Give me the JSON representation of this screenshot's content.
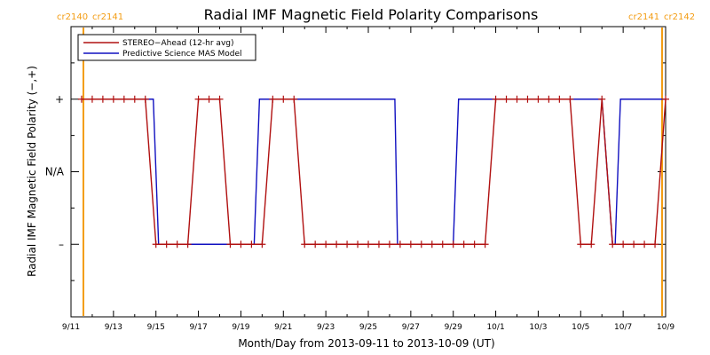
{
  "chart_data": {
    "type": "line",
    "title": "Radial IMF Magnetic Field Polarity Comparisons",
    "xlabel": "Month/Day from 2013-09-11 to 2013-10-09 (UT)",
    "ylabel": "Radial IMF Magnetic Field Polarity (−,+)",
    "x_range": [
      "2013-09-11",
      "2013-10-09"
    ],
    "x_ticks": [
      {
        "date": "2013-09-11",
        "label": "9/11"
      },
      {
        "date": "2013-09-13",
        "label": "9/13"
      },
      {
        "date": "2013-09-15",
        "label": "9/15"
      },
      {
        "date": "2013-09-17",
        "label": "9/17"
      },
      {
        "date": "2013-09-19",
        "label": "9/19"
      },
      {
        "date": "2013-09-21",
        "label": "9/21"
      },
      {
        "date": "2013-09-23",
        "label": "9/23"
      },
      {
        "date": "2013-09-25",
        "label": "9/25"
      },
      {
        "date": "2013-09-27",
        "label": "9/27"
      },
      {
        "date": "2013-09-29",
        "label": "9/29"
      },
      {
        "date": "2013-10-01",
        "label": "10/1"
      },
      {
        "date": "2013-10-03",
        "label": "10/3"
      },
      {
        "date": "2013-10-05",
        "label": "10/5"
      },
      {
        "date": "2013-10-07",
        "label": "10/7"
      },
      {
        "date": "2013-10-09",
        "label": "10/9"
      }
    ],
    "y_ticks": [
      {
        "value": 1,
        "label": "+"
      },
      {
        "value": 0,
        "label": "N/A"
      },
      {
        "value": -1,
        "label": "–"
      }
    ],
    "y_range": [
      -2,
      2
    ],
    "grid": false,
    "legend": "top-left",
    "carrington_markers": [
      {
        "date": "2013-09-11T14:00",
        "left_label": "cr2140",
        "right_label": "cr2141",
        "color": "#f39c12",
        "position": "left"
      },
      {
        "date": "2013-10-08T20:00",
        "left_label": "cr2141",
        "right_label": "cr2142",
        "color": "#f39c12",
        "position": "right"
      }
    ],
    "series": [
      {
        "name": "STEREO−Ahead (12-hr avg)",
        "color": "#b01010",
        "marker": "plus",
        "points": [
          [
            "2013-09-11T12:00",
            1
          ],
          [
            "2013-09-12T00:00",
            1
          ],
          [
            "2013-09-12T12:00",
            1
          ],
          [
            "2013-09-13T00:00",
            1
          ],
          [
            "2013-09-13T12:00",
            1
          ],
          [
            "2013-09-14T00:00",
            1
          ],
          [
            "2013-09-14T12:00",
            1
          ],
          [
            "2013-09-15T00:00",
            -1
          ],
          [
            "2013-09-15T12:00",
            -1
          ],
          [
            "2013-09-16T00:00",
            -1
          ],
          [
            "2013-09-16T12:00",
            -1
          ],
          [
            "2013-09-17T00:00",
            1
          ],
          [
            "2013-09-17T12:00",
            1
          ],
          [
            "2013-09-18T00:00",
            1
          ],
          [
            "2013-09-18T12:00",
            -1
          ],
          [
            "2013-09-19T00:00",
            -1
          ],
          [
            "2013-09-19T12:00",
            -1
          ],
          [
            "2013-09-20T00:00",
            -1
          ],
          [
            "2013-09-20T12:00",
            1
          ],
          [
            "2013-09-21T00:00",
            1
          ],
          [
            "2013-09-21T12:00",
            1
          ],
          [
            "2013-09-22T00:00",
            -1
          ],
          [
            "2013-09-22T12:00",
            -1
          ],
          [
            "2013-09-23T00:00",
            -1
          ],
          [
            "2013-09-23T12:00",
            -1
          ],
          [
            "2013-09-24T00:00",
            -1
          ],
          [
            "2013-09-24T12:00",
            -1
          ],
          [
            "2013-09-25T00:00",
            -1
          ],
          [
            "2013-09-25T12:00",
            -1
          ],
          [
            "2013-09-26T00:00",
            -1
          ],
          [
            "2013-09-26T12:00",
            -1
          ],
          [
            "2013-09-27T00:00",
            -1
          ],
          [
            "2013-09-27T12:00",
            -1
          ],
          [
            "2013-09-28T00:00",
            -1
          ],
          [
            "2013-09-28T12:00",
            -1
          ],
          [
            "2013-09-29T00:00",
            -1
          ],
          [
            "2013-09-29T12:00",
            -1
          ],
          [
            "2013-09-30T00:00",
            -1
          ],
          [
            "2013-09-30T12:00",
            -1
          ],
          [
            "2013-10-01T00:00",
            1
          ],
          [
            "2013-10-01T12:00",
            1
          ],
          [
            "2013-10-02T00:00",
            1
          ],
          [
            "2013-10-02T12:00",
            1
          ],
          [
            "2013-10-03T00:00",
            1
          ],
          [
            "2013-10-03T12:00",
            1
          ],
          [
            "2013-10-04T00:00",
            1
          ],
          [
            "2013-10-04T12:00",
            1
          ],
          [
            "2013-10-05T00:00",
            -1
          ],
          [
            "2013-10-05T12:00",
            -1
          ],
          [
            "2013-10-06T00:00",
            1
          ],
          [
            "2013-10-06T12:00",
            -1
          ],
          [
            "2013-10-07T00:00",
            -1
          ],
          [
            "2013-10-07T12:00",
            -1
          ],
          [
            "2013-10-08T00:00",
            -1
          ],
          [
            "2013-10-08T12:00",
            -1
          ],
          [
            "2013-10-09T00:00",
            1
          ]
        ]
      },
      {
        "name": "Predictive Science MAS Model",
        "color": "#1010c0",
        "marker": "none",
        "points": [
          [
            "2013-09-11T12:00",
            1
          ],
          [
            "2013-09-14T21:00",
            1
          ],
          [
            "2013-09-15T03:00",
            -1
          ],
          [
            "2013-09-16T00:00",
            -1
          ],
          [
            "2013-09-16T03:00",
            -1
          ],
          [
            "2013-09-19T15:00",
            -1
          ],
          [
            "2013-09-19T21:00",
            1
          ],
          [
            "2013-09-26T06:00",
            1
          ],
          [
            "2013-09-26T09:00",
            -1
          ],
          [
            "2013-09-29T00:00",
            -1
          ],
          [
            "2013-09-29T06:00",
            1
          ],
          [
            "2013-10-06T00:00",
            1
          ],
          [
            "2013-10-06T12:00",
            -1
          ],
          [
            "2013-10-06T15:00",
            -1
          ],
          [
            "2013-10-06T21:00",
            1
          ],
          [
            "2013-10-09T00:00",
            1
          ]
        ]
      }
    ]
  }
}
